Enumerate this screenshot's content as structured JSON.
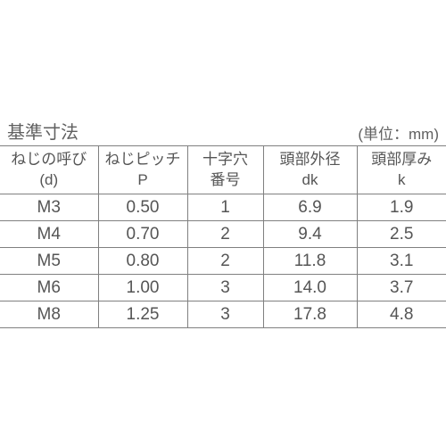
{
  "title": "基準寸法",
  "unit": "(単位：mm)",
  "table": {
    "columns": [
      {
        "line1": "ねじの呼び",
        "line2": "(d)"
      },
      {
        "line1": "ねじピッチ",
        "line2": "P"
      },
      {
        "line1": "十字穴",
        "line2": "番号"
      },
      {
        "line1": "頭部外径",
        "line2": "dk"
      },
      {
        "line1": "頭部厚み",
        "line2": "k"
      }
    ],
    "rows": [
      [
        "M3",
        "0.50",
        "1",
        "6.9",
        "1.9"
      ],
      [
        "M4",
        "0.70",
        "2",
        "9.4",
        "2.5"
      ],
      [
        "M5",
        "0.80",
        "2",
        "11.8",
        "3.1"
      ],
      [
        "M6",
        "1.00",
        "3",
        "14.0",
        "3.7"
      ],
      [
        "M8",
        "1.25",
        "3",
        "17.8",
        "4.8"
      ]
    ],
    "col_widths": [
      "22%",
      "20%",
      "17%",
      "21%",
      "20%"
    ]
  },
  "styling": {
    "text_color": "#555555",
    "header_text_color": "#606060",
    "border_color": "#808080",
    "background": "#ffffff",
    "title_fontsize": 20,
    "unit_fontsize": 17,
    "th_fontsize": 17,
    "td_fontsize": 19,
    "font_weight": 300
  }
}
